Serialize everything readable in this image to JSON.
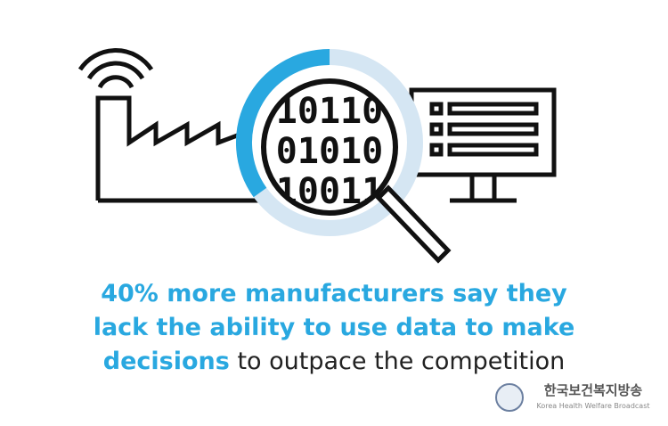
{
  "graphic": {
    "binary_rows": [
      "10110",
      "01010",
      "10011"
    ]
  },
  "headline": {
    "line1": "40% more manufacturers say they",
    "line2": "lack the ability to use data to make",
    "line3_highlight": "decisions",
    "line3_rest": "to outpace the competition"
  },
  "watermark": {
    "title": "한국보건복지방송",
    "subtitle": "Korea Health Welfare Broadcast"
  }
}
